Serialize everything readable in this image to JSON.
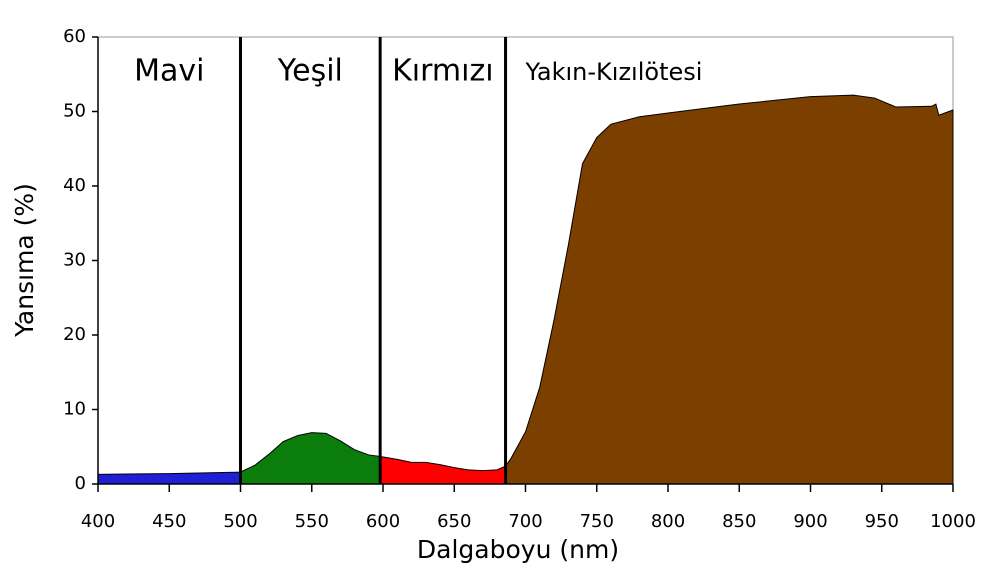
{
  "chart_data": {
    "type": "area",
    "xlabel": "Dalgaboyu (nm)",
    "ylabel": "Yansıma (%)",
    "xlim": [
      400,
      1000
    ],
    "xticks": [
      400,
      450,
      500,
      550,
      600,
      650,
      700,
      750,
      800,
      850,
      900,
      950,
      1000
    ],
    "ylim": [
      0,
      60
    ],
    "yticks": [
      0,
      10,
      20,
      30,
      40,
      50,
      60
    ],
    "grid": false,
    "band_edges": [
      500,
      598,
      686
    ],
    "series": [
      {
        "name": "Mavi",
        "color": "#1f1fd6",
        "x": [
          400,
          450,
          500
        ],
        "values": [
          1.3,
          1.4,
          1.6
        ]
      },
      {
        "name": "Yeşil",
        "color": "#0a7d0a",
        "x": [
          500,
          510,
          520,
          530,
          540,
          550,
          560,
          570,
          580,
          590,
          598
        ],
        "values": [
          1.6,
          2.5,
          4,
          5.7,
          6.5,
          6.9,
          6.8,
          5.8,
          4.6,
          3.9,
          3.7
        ]
      },
      {
        "name": "Kırmızı",
        "color": "#ff0000",
        "x": [
          598,
          610,
          620,
          630,
          640,
          650,
          660,
          670,
          680,
          686
        ],
        "values": [
          3.7,
          3.3,
          2.9,
          2.9,
          2.6,
          2.2,
          1.9,
          1.8,
          1.9,
          2.4
        ]
      },
      {
        "name": "Yakın-Kızılötesi",
        "color": "#7b3f00",
        "x": [
          686,
          690,
          700,
          710,
          720,
          730,
          740,
          750,
          760,
          780,
          800,
          850,
          900,
          930,
          945,
          960,
          985,
          988,
          990,
          1000
        ],
        "values": [
          2.4,
          3.5,
          7,
          13,
          22,
          32,
          43,
          46.5,
          48.3,
          49.3,
          49.8,
          51,
          52,
          52.2,
          51.8,
          50.6,
          50.7,
          51,
          49.5,
          50.2
        ]
      }
    ]
  }
}
